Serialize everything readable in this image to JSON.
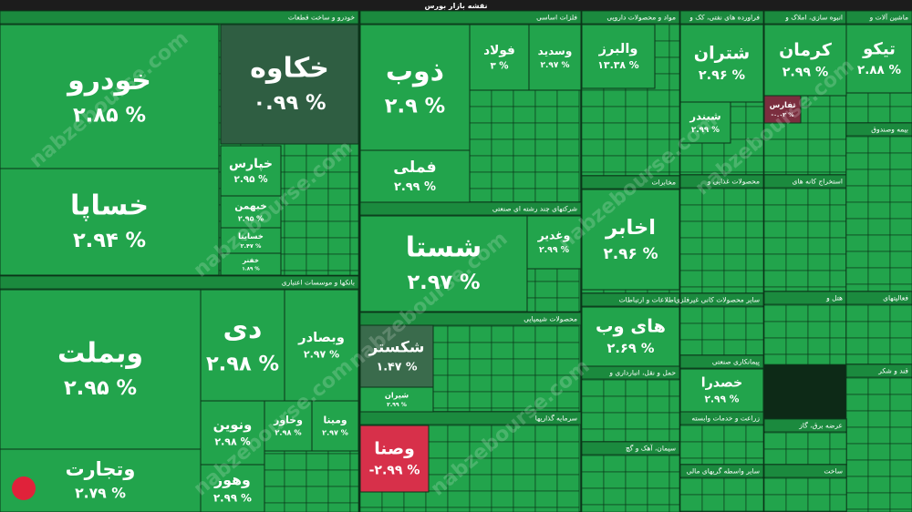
{
  "header": {
    "title": "نقشه بازار بورس"
  },
  "watermark": "nabzebourse.com",
  "tile_color": "#22a44c",
  "sectors": [
    {
      "name": "خودرو و ساخت قطعات"
    },
    {
      "name": "بانکها و موسسات اعتباری"
    },
    {
      "name": "فلزات اساسی"
    },
    {
      "name": "شرکتهای چند رشته ای صنعتی"
    },
    {
      "name": "محصولات شیمیایی"
    },
    {
      "name": "سرمایه گذاریها"
    },
    {
      "name": "مواد و محصولات دارویی"
    },
    {
      "name": "مخابرات"
    },
    {
      "name": "اطلاعات و ارتباطات"
    },
    {
      "name": "حمل و نقل، انبارداری و"
    },
    {
      "name": "سیمان، آهک و گچ"
    },
    {
      "name": "فراورده های نفتی، کک و"
    },
    {
      "name": "محصولات غذایی و"
    },
    {
      "name": "سایر محصولات کانی غیرفلزی"
    },
    {
      "name": "پیمانکاری صنعتی"
    },
    {
      "name": "زراعت و خدمات وابسته"
    },
    {
      "name": "سایر واسطه گریهای مالی"
    },
    {
      "name": "انبوه سازی، املاک و"
    },
    {
      "name": "استخراج کانه های"
    },
    {
      "name": "هتل و"
    },
    {
      "name": "ماشین آلات و"
    },
    {
      "name": "بیمه وصندوق"
    },
    {
      "name": "فعالیتهای"
    },
    {
      "name": "قند و شکر"
    },
    {
      "name": "عرضه برق، گاز"
    },
    {
      "name": "ساخت"
    }
  ],
  "tiles": [
    {
      "name": "خودرو",
      "change": "۲.۸۵ %"
    },
    {
      "name": "خساپا",
      "change": "۲.۹۴ %"
    },
    {
      "name": "خکاوه",
      "change": "۰.۹۹ %",
      "color": "#2f5e42"
    },
    {
      "name": "خپارس",
      "change": "۲.۹۵ %"
    },
    {
      "name": "خبهمن",
      "change": "۲.۹۵ %"
    },
    {
      "name": "خساینا",
      "change": "۲.۴۷ %"
    },
    {
      "name": "خفنر",
      "change": "۱.۸۹ %"
    },
    {
      "name": "وبملت",
      "change": "۲.۹۵ %"
    },
    {
      "name": "وتجارت",
      "change": "۲.۷۹ %"
    },
    {
      "name": "دی",
      "change": "۲.۹۸ %"
    },
    {
      "name": "وبصادر",
      "change": "۲.۹۷ %"
    },
    {
      "name": "ونوین",
      "change": "۲.۹۸ %"
    },
    {
      "name": "وخاور",
      "change": "۲.۹۸ %"
    },
    {
      "name": "ومینا",
      "change": "۲.۹۷ %"
    },
    {
      "name": "وهور",
      "change": "۲.۹۹ %"
    },
    {
      "name": "ذوب",
      "change": "۲.۹ %"
    },
    {
      "name": "فملی",
      "change": "۲.۹۹ %"
    },
    {
      "name": "فولاد",
      "change": "۳ %"
    },
    {
      "name": "وسدید",
      "change": "۲.۹۷ %"
    },
    {
      "name": "شستا",
      "change": "۲.۹۷ %"
    },
    {
      "name": "وغدیر",
      "change": "۲.۹۹ %"
    },
    {
      "name": "شکستر",
      "change": "۱.۴۷ %",
      "color": "#3a6b4c"
    },
    {
      "name": "شیران",
      "change": "۲.۹۹ %"
    },
    {
      "name": "وصنا",
      "change": "-۲.۹۹ %",
      "color": "#d7304a"
    },
    {
      "name": "والبرز",
      "change": "۱۳.۳۸ %"
    },
    {
      "name": "اخابر",
      "change": "۲.۹۶ %"
    },
    {
      "name": "های وب",
      "change": "۲.۶۹ %"
    },
    {
      "name": "شتران",
      "change": "۲.۹۶ %"
    },
    {
      "name": "شبندر",
      "change": "۲.۹۹ %"
    },
    {
      "name": "کرمان",
      "change": "۲.۹۹ %"
    },
    {
      "name": "ثفارس",
      "change": "-۰.۰۲ %",
      "color": "#7b2e3f"
    },
    {
      "name": "تیکو",
      "change": "۲.۸۸ %"
    },
    {
      "name": "خصدرا",
      "change": "۲.۹۹ %"
    }
  ]
}
